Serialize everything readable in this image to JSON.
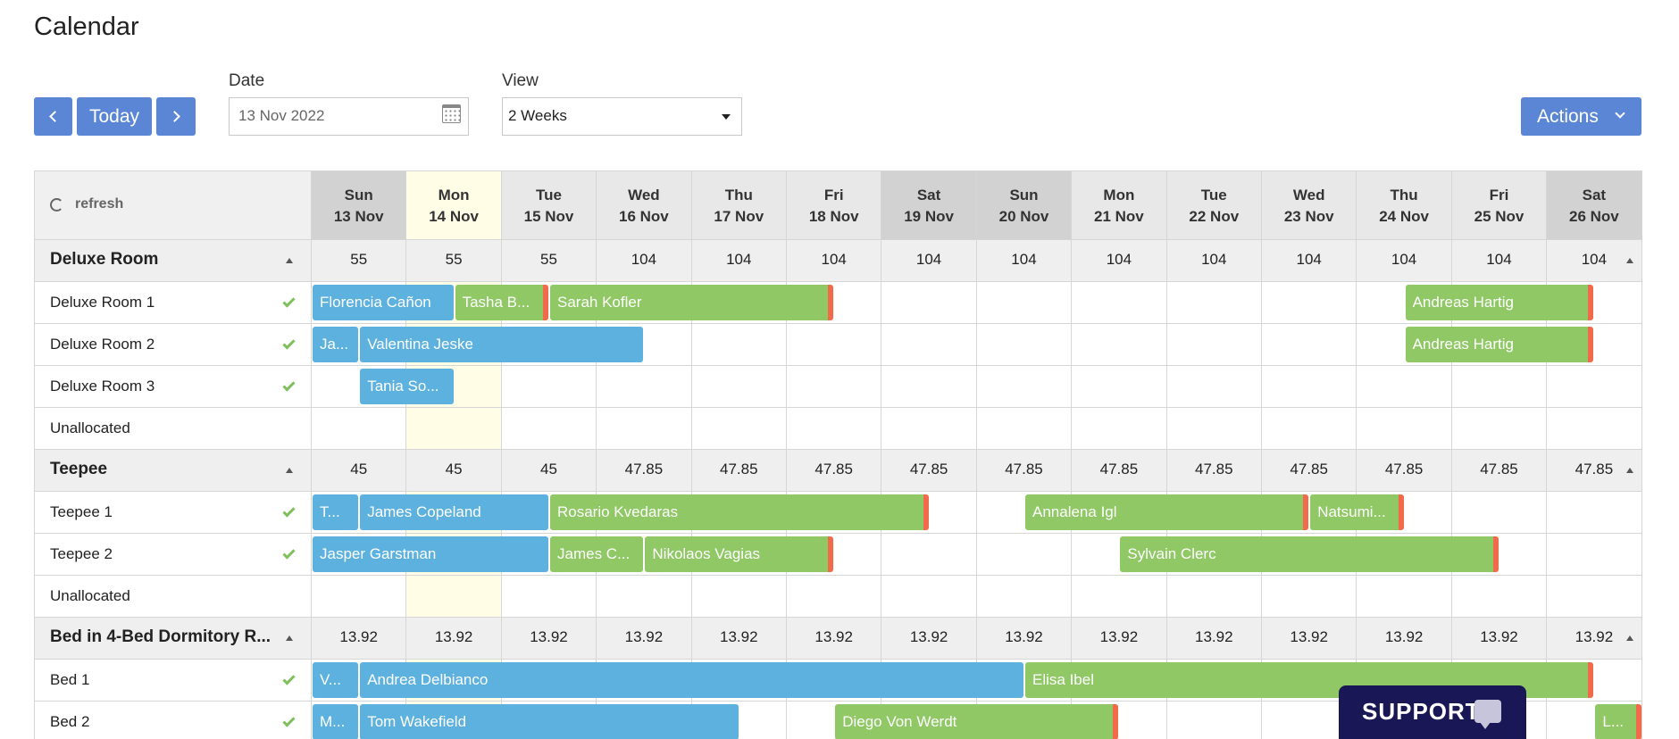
{
  "page": {
    "title": "Calendar"
  },
  "toolbar": {
    "today_label": "Today",
    "date_label": "Date",
    "date_value": "13 Nov 2022",
    "view_label": "View",
    "view_value": "2 Weeks",
    "actions_label": "Actions"
  },
  "grid": {
    "refresh_label": "refresh",
    "days": [
      {
        "dow": "Sun",
        "date": "13 Nov",
        "weekend": true
      },
      {
        "dow": "Mon",
        "date": "14 Nov",
        "today": true
      },
      {
        "dow": "Tue",
        "date": "15 Nov"
      },
      {
        "dow": "Wed",
        "date": "16 Nov"
      },
      {
        "dow": "Thu",
        "date": "17 Nov"
      },
      {
        "dow": "Fri",
        "date": "18 Nov"
      },
      {
        "dow": "Sat",
        "date": "19 Nov",
        "weekend": true
      },
      {
        "dow": "Sun",
        "date": "20 Nov",
        "weekend": true
      },
      {
        "dow": "Mon",
        "date": "21 Nov"
      },
      {
        "dow": "Tue",
        "date": "22 Nov"
      },
      {
        "dow": "Wed",
        "date": "23 Nov"
      },
      {
        "dow": "Thu",
        "date": "24 Nov"
      },
      {
        "dow": "Fri",
        "date": "25 Nov"
      },
      {
        "dow": "Sat",
        "date": "26 Nov",
        "weekend": true
      }
    ],
    "groups": [
      {
        "name": "Deluxe Room",
        "prices": [
          "55",
          "55",
          "55",
          "104",
          "104",
          "104",
          "104",
          "104",
          "104",
          "104",
          "104",
          "104",
          "104",
          "104"
        ],
        "rooms": [
          {
            "name": "Deluxe Room 1",
            "status": true,
            "bookings": [
              {
                "guest": "Florencia Cañon",
                "start": 0,
                "days": 1.5,
                "color": "blue"
              },
              {
                "guest": "Tasha B...",
                "start": 1.5,
                "days": 1,
                "color": "green",
                "end_flag": true
              },
              {
                "guest": "Sarah Kofler",
                "start": 2.5,
                "days": 3,
                "color": "green",
                "end_flag": true
              },
              {
                "guest": "Andreas Hartig",
                "start": 11.5,
                "days": 2,
                "color": "green",
                "end_flag": true
              }
            ]
          },
          {
            "name": "Deluxe Room 2",
            "status": true,
            "bookings": [
              {
                "guest": "Ja...",
                "start": 0,
                "days": 0.5,
                "color": "blue"
              },
              {
                "guest": "Valentina Jeske",
                "start": 0.5,
                "days": 3,
                "color": "blue"
              },
              {
                "guest": "Andreas Hartig",
                "start": 11.5,
                "days": 2,
                "color": "green",
                "end_flag": true
              }
            ]
          },
          {
            "name": "Deluxe Room 3",
            "status": true,
            "bookings": [
              {
                "guest": "Tania So...",
                "start": 0.5,
                "days": 1,
                "color": "blue"
              }
            ]
          },
          {
            "name": "Unallocated",
            "status": false,
            "bookings": []
          }
        ]
      },
      {
        "name": "Teepee",
        "prices": [
          "45",
          "45",
          "45",
          "47.85",
          "47.85",
          "47.85",
          "47.85",
          "47.85",
          "47.85",
          "47.85",
          "47.85",
          "47.85",
          "47.85",
          "47.85"
        ],
        "rooms": [
          {
            "name": "Teepee 1",
            "status": true,
            "bookings": [
              {
                "guest": "T...",
                "start": 0,
                "days": 0.5,
                "color": "blue"
              },
              {
                "guest": "James Copeland",
                "start": 0.5,
                "days": 2,
                "color": "blue"
              },
              {
                "guest": "Rosario Kvedaras",
                "start": 2.5,
                "days": 4,
                "color": "green",
                "end_flag": true
              },
              {
                "guest": "Annalena Igl",
                "start": 7.5,
                "days": 3,
                "color": "green",
                "end_flag": true
              },
              {
                "guest": "Natsumi...",
                "start": 10.5,
                "days": 1,
                "color": "green",
                "end_flag": true
              }
            ]
          },
          {
            "name": "Teepee 2",
            "status": true,
            "bookings": [
              {
                "guest": "Jasper Garstman",
                "start": 0,
                "days": 2.5,
                "color": "blue"
              },
              {
                "guest": "James C...",
                "start": 2.5,
                "days": 1,
                "color": "green"
              },
              {
                "guest": "Nikolaos Vagias",
                "start": 3.5,
                "days": 2,
                "color": "green",
                "end_flag": true
              },
              {
                "guest": "Sylvain Clerc",
                "start": 8.5,
                "days": 4,
                "color": "green",
                "end_flag": true
              }
            ]
          },
          {
            "name": "Unallocated",
            "status": false,
            "bookings": []
          }
        ]
      },
      {
        "name": "Bed in 4-Bed Dormitory R...",
        "prices": [
          "13.92",
          "13.92",
          "13.92",
          "13.92",
          "13.92",
          "13.92",
          "13.92",
          "13.92",
          "13.92",
          "13.92",
          "13.92",
          "13.92",
          "13.92",
          "13.92"
        ],
        "rooms": [
          {
            "name": "Bed 1",
            "status": true,
            "bookings": [
              {
                "guest": "V...",
                "start": 0,
                "days": 0.5,
                "color": "blue"
              },
              {
                "guest": "Andrea Delbianco",
                "start": 0.5,
                "days": 7,
                "color": "blue"
              },
              {
                "guest": "Elisa Ibel",
                "start": 7.5,
                "days": 6,
                "color": "green",
                "end_flag": true
              }
            ]
          },
          {
            "name": "Bed 2",
            "status": true,
            "bookings": [
              {
                "guest": "M...",
                "start": 0,
                "days": 0.5,
                "color": "blue"
              },
              {
                "guest": "Tom Wakefield",
                "start": 0.5,
                "days": 4,
                "color": "blue"
              },
              {
                "guest": "Diego Von Werdt",
                "start": 5.5,
                "days": 3,
                "color": "green",
                "end_flag": true
              },
              {
                "guest": "L...",
                "start": 13.5,
                "days": 0.5,
                "color": "green",
                "end_flag": true
              }
            ]
          }
        ]
      }
    ]
  },
  "support": {
    "label": "SUPPORT"
  }
}
